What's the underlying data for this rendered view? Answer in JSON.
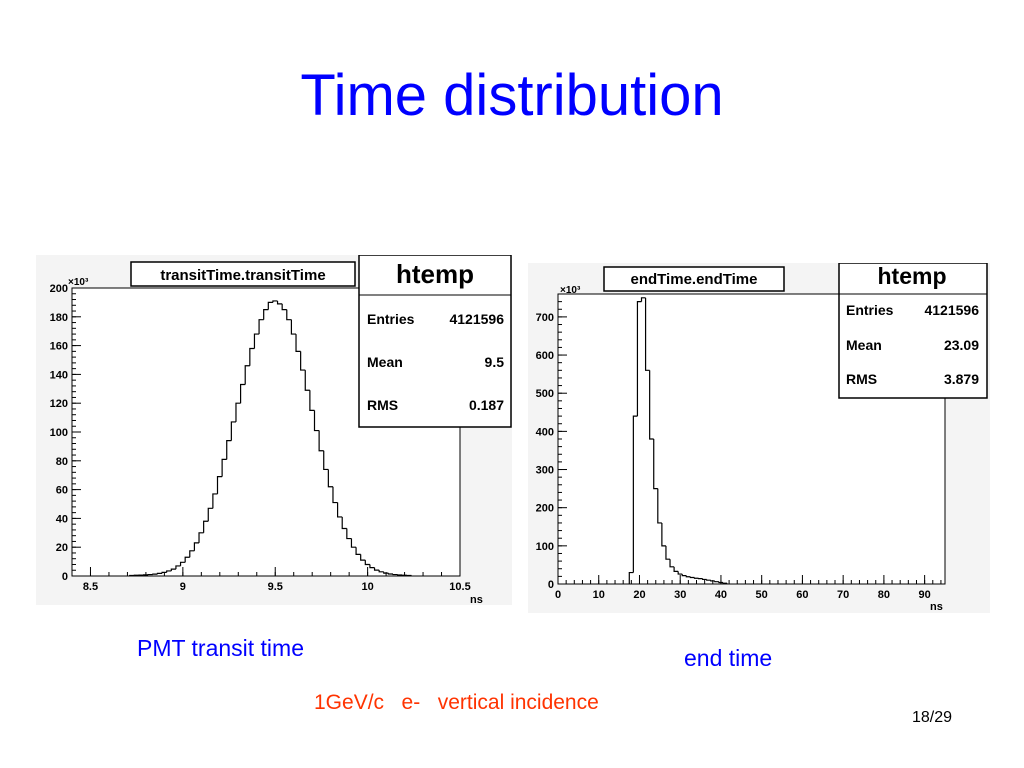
{
  "slide": {
    "title": "Time distribution",
    "caption_left": "PMT transit time",
    "caption_right": "end time",
    "subtitle": "1GeV/c   e-   vertical incidence",
    "page": "18/29"
  },
  "colors": {
    "title": "#0000ff",
    "subtitle": "#ff3300",
    "plot_background": "#f4f4f4",
    "line": "#000000"
  },
  "chart_data": [
    {
      "type": "histogram",
      "title": "transitTime.transitTime",
      "xlabel": "ns",
      "ylabel": "",
      "y_multiplier": "×10³",
      "xlim": [
        8.4,
        10.5
      ],
      "ylim": [
        0,
        200
      ],
      "xticks": [
        8.5,
        9,
        9.5,
        10,
        10.5
      ],
      "xtick_labels": [
        "8.5",
        "9",
        "9.5",
        "10",
        "10.5"
      ],
      "yticks": [
        0,
        20,
        40,
        60,
        80,
        100,
        120,
        140,
        160,
        180,
        200
      ],
      "ytick_labels": [
        "0",
        "20",
        "40",
        "60",
        "80",
        "100",
        "120",
        "140",
        "160",
        "180",
        "200"
      ],
      "grid": false,
      "stats": {
        "name": "htemp",
        "rows": [
          {
            "label": "Entries",
            "value": "4121596"
          },
          {
            "label": "Mean",
            "value": "9.5"
          },
          {
            "label": "RMS",
            "value": "0.187"
          }
        ]
      },
      "bin_width": 0.025,
      "bins": [
        {
          "x": 8.725,
          "y": 0.4
        },
        {
          "x": 8.75,
          "y": 0.5
        },
        {
          "x": 8.775,
          "y": 0.6
        },
        {
          "x": 8.8,
          "y": 0.8
        },
        {
          "x": 8.825,
          "y": 1.0
        },
        {
          "x": 8.85,
          "y": 1.3
        },
        {
          "x": 8.875,
          "y": 1.8
        },
        {
          "x": 8.9,
          "y": 2.5
        },
        {
          "x": 8.925,
          "y": 3.5
        },
        {
          "x": 8.95,
          "y": 4.8
        },
        {
          "x": 8.975,
          "y": 7
        },
        {
          "x": 9.0,
          "y": 9.5
        },
        {
          "x": 9.025,
          "y": 13
        },
        {
          "x": 9.05,
          "y": 17.5
        },
        {
          "x": 9.075,
          "y": 23
        },
        {
          "x": 9.1,
          "y": 30
        },
        {
          "x": 9.125,
          "y": 38
        },
        {
          "x": 9.15,
          "y": 47
        },
        {
          "x": 9.175,
          "y": 57
        },
        {
          "x": 9.2,
          "y": 69
        },
        {
          "x": 9.225,
          "y": 81
        },
        {
          "x": 9.25,
          "y": 94
        },
        {
          "x": 9.275,
          "y": 107
        },
        {
          "x": 9.3,
          "y": 120
        },
        {
          "x": 9.325,
          "y": 133
        },
        {
          "x": 9.35,
          "y": 146
        },
        {
          "x": 9.375,
          "y": 158
        },
        {
          "x": 9.4,
          "y": 168
        },
        {
          "x": 9.425,
          "y": 178
        },
        {
          "x": 9.45,
          "y": 185
        },
        {
          "x": 9.475,
          "y": 190
        },
        {
          "x": 9.5,
          "y": 191
        },
        {
          "x": 9.525,
          "y": 189
        },
        {
          "x": 9.55,
          "y": 185
        },
        {
          "x": 9.575,
          "y": 178
        },
        {
          "x": 9.6,
          "y": 168
        },
        {
          "x": 9.625,
          "y": 156
        },
        {
          "x": 9.65,
          "y": 143
        },
        {
          "x": 9.675,
          "y": 129
        },
        {
          "x": 9.7,
          "y": 115
        },
        {
          "x": 9.725,
          "y": 101
        },
        {
          "x": 9.75,
          "y": 87
        },
        {
          "x": 9.775,
          "y": 74
        },
        {
          "x": 9.8,
          "y": 62
        },
        {
          "x": 9.825,
          "y": 51
        },
        {
          "x": 9.85,
          "y": 41
        },
        {
          "x": 9.875,
          "y": 33
        },
        {
          "x": 9.9,
          "y": 26
        },
        {
          "x": 9.925,
          "y": 20
        },
        {
          "x": 9.95,
          "y": 15
        },
        {
          "x": 9.975,
          "y": 11
        },
        {
          "x": 10.0,
          "y": 8
        },
        {
          "x": 10.025,
          "y": 5.8
        },
        {
          "x": 10.05,
          "y": 4.1
        },
        {
          "x": 10.075,
          "y": 2.9
        },
        {
          "x": 10.1,
          "y": 2.0
        },
        {
          "x": 10.125,
          "y": 1.4
        },
        {
          "x": 10.15,
          "y": 1.0
        },
        {
          "x": 10.175,
          "y": 0.7
        },
        {
          "x": 10.2,
          "y": 0.5
        },
        {
          "x": 10.225,
          "y": 0.4
        }
      ]
    },
    {
      "type": "histogram",
      "title": "endTime.endTime",
      "xlabel": "ns",
      "ylabel": "",
      "y_multiplier": "×10³",
      "xlim": [
        0,
        95
      ],
      "ylim": [
        0,
        760
      ],
      "xticks": [
        0,
        10,
        20,
        30,
        40,
        50,
        60,
        70,
        80,
        90
      ],
      "xtick_labels": [
        "0",
        "10",
        "20",
        "30",
        "40",
        "50",
        "60",
        "70",
        "80",
        "90"
      ],
      "yticks": [
        0,
        100,
        200,
        300,
        400,
        500,
        600,
        700
      ],
      "ytick_labels": [
        "0",
        "100",
        "200",
        "300",
        "400",
        "500",
        "600",
        "700"
      ],
      "grid": false,
      "stats": {
        "name": "htemp",
        "rows": [
          {
            "label": "Entries",
            "value": "4121596"
          },
          {
            "label": "Mean",
            "value": "23.09"
          },
          {
            "label": "RMS",
            "value": "3.879"
          }
        ]
      },
      "bin_width": 1,
      "bins": [
        {
          "x": 18,
          "y": 30
        },
        {
          "x": 19,
          "y": 440
        },
        {
          "x": 20,
          "y": 740
        },
        {
          "x": 21,
          "y": 750
        },
        {
          "x": 22,
          "y": 560
        },
        {
          "x": 23,
          "y": 380
        },
        {
          "x": 24,
          "y": 250
        },
        {
          "x": 25,
          "y": 160
        },
        {
          "x": 26,
          "y": 100
        },
        {
          "x": 27,
          "y": 65
        },
        {
          "x": 28,
          "y": 45
        },
        {
          "x": 29,
          "y": 33
        },
        {
          "x": 30,
          "y": 26
        },
        {
          "x": 31,
          "y": 22
        },
        {
          "x": 32,
          "y": 19
        },
        {
          "x": 33,
          "y": 17
        },
        {
          "x": 34,
          "y": 15
        },
        {
          "x": 35,
          "y": 14
        },
        {
          "x": 36,
          "y": 12
        },
        {
          "x": 37,
          "y": 10
        },
        {
          "x": 38,
          "y": 8
        },
        {
          "x": 39,
          "y": 6
        },
        {
          "x": 40,
          "y": 4
        },
        {
          "x": 41,
          "y": 2
        }
      ]
    }
  ]
}
